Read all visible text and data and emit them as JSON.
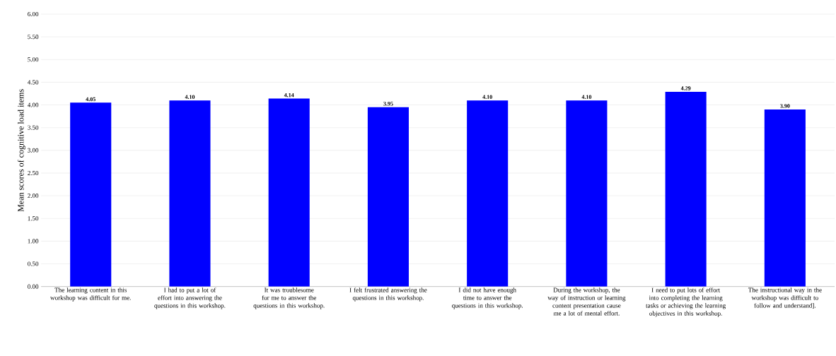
{
  "chart_data": {
    "type": "bar",
    "ylabel": "Mean scores of cognitive load items",
    "categories": [
      "The learning content in this workshop was difficult for me.",
      "I had to put a lot of effort into answering the questions in this workshop.",
      "It was troublesome for me to answer the questions in this workshop.",
      "I felt frustrated answering the questions in this workshop.",
      "I did not have enough time to answer the questions in this workshop.",
      "During the workshop, the way of instruction or learning content presentation cause me a lot of mental effort.",
      "I need to put lots of effort into completing the learning tasks or achieving the learning objectives in this workshop.",
      "The instructional way in the workshop was difficult to follow and understand]."
    ],
    "values": [
      4.05,
      4.1,
      4.14,
      3.95,
      4.1,
      4.1,
      4.29,
      3.9
    ],
    "value_labels": [
      "4.05",
      "4.10",
      "4.14",
      "3.95",
      "4.10",
      "4.10",
      "4.29",
      "3.90"
    ],
    "color": "#0000ff",
    "ylim": [
      0,
      6
    ],
    "yticks": [
      {
        "value": 0,
        "label": "0.00"
      },
      {
        "value": 0.5,
        "label": "0.50"
      },
      {
        "value": 1,
        "label": "1.00"
      },
      {
        "value": 1.5,
        "label": "1.50"
      },
      {
        "value": 2,
        "label": "2.00"
      },
      {
        "value": 2.5,
        "label": "2.50"
      },
      {
        "value": 3,
        "label": "3.00"
      },
      {
        "value": 3.5,
        "label": "3.50"
      },
      {
        "value": 4,
        "label": "4.00"
      },
      {
        "value": 4.5,
        "label": "4.50"
      },
      {
        "value": 5,
        "label": "5.00"
      },
      {
        "value": 5.5,
        "label": "5.50"
      },
      {
        "value": 6,
        "label": "6.00"
      }
    ],
    "grid": "y"
  }
}
